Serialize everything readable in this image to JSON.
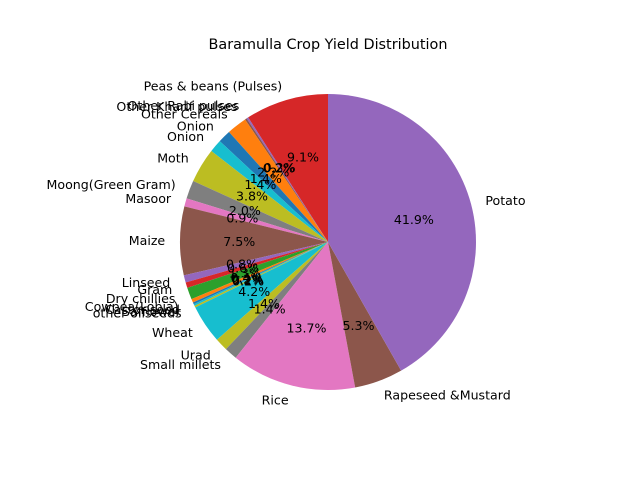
{
  "chart_data": {
    "type": "pie",
    "title": "Baramulla Crop Yield Distribution",
    "start_angle_deg": 90,
    "direction": "counterclockwise",
    "slices": [
      {
        "label": "Peas & beans (Pulses)",
        "value": 9.1,
        "pct_label": "9.1%",
        "color": "#d62728"
      },
      {
        "label": "Other Rabi pulses",
        "value": 0.2,
        "pct_label": "0.2%",
        "color": "#9467bd"
      },
      {
        "label": "Other Kharif pulses",
        "value": 0.2,
        "pct_label": "0.2%",
        "color": "#8c564b"
      },
      {
        "label": "Other Cereals",
        "value": 2.2,
        "pct_label": "2.2%",
        "color": "#ff7f0e"
      },
      {
        "label": "Onion",
        "value": 1.4,
        "pct_label": "1.4%",
        "color": "#1f77b4"
      },
      {
        "label": "Onion",
        "value": 1.4,
        "pct_label": "1.4%",
        "color": "#17becf"
      },
      {
        "label": "Moth",
        "value": 3.8,
        "pct_label": "3.8%",
        "color": "#bcbd22"
      },
      {
        "label": "Moong(Green Gram)",
        "value": 2.0,
        "pct_label": "2.0%",
        "color": "#7f7f7f"
      },
      {
        "label": "Masoor",
        "value": 0.9,
        "pct_label": "0.9%",
        "color": "#e377c2"
      },
      {
        "label": "Maize",
        "value": 7.5,
        "pct_label": "7.5%",
        "color": "#8c564b"
      },
      {
        "label": "Linseed",
        "value": 0.8,
        "pct_label": "0.8%",
        "color": "#9467bd"
      },
      {
        "label": "Gram",
        "value": 0.6,
        "pct_label": "0.6%",
        "color": "#d62728"
      },
      {
        "label": "Dry chillies",
        "value": 1.3,
        "pct_label": "1.3%",
        "color": "#2ca02c"
      },
      {
        "label": "Cowpea(Lobia)",
        "value": 0.4,
        "pct_label": "0.4%",
        "color": "#ff7f0e"
      },
      {
        "label": "Castor seed",
        "value": 0.2,
        "pct_label": "0.2%",
        "color": "#1f77b4"
      },
      {
        "label": "Safflower",
        "value": 0.2,
        "pct_label": "0.2%",
        "color": "#17becf"
      },
      {
        "label": "other oilseeds",
        "value": 0.2,
        "pct_label": "0.2%",
        "color": "#bcbd22"
      },
      {
        "label": "Wheat",
        "value": 4.2,
        "pct_label": "4.2%",
        "color": "#17becf"
      },
      {
        "label": "Urad",
        "value": 1.4,
        "pct_label": "1.4%",
        "color": "#bcbd22"
      },
      {
        "label": "Small millets",
        "value": 1.4,
        "pct_label": "1.4%",
        "color": "#7f7f7f"
      },
      {
        "label": "Rice",
        "value": 13.7,
        "pct_label": "13.7%",
        "color": "#e377c2"
      },
      {
        "label": "Rapeseed &Mustard",
        "value": 5.3,
        "pct_label": "5.3%",
        "color": "#8c564b"
      },
      {
        "label": "Potato",
        "value": 41.9,
        "pct_label": "41.9%",
        "color": "#9467bd"
      }
    ]
  }
}
